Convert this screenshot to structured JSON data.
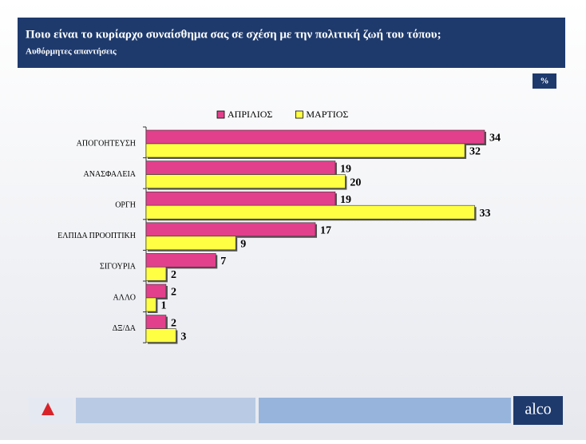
{
  "chart_data": {
    "type": "hbar",
    "title": "Ποιο είναι το κυρίαρχο συναίσθημα σας σε σχέση με την πολιτική ζωή του τόπου;",
    "subtitle": "Αυθόρμητες απαντήσεις",
    "unit": "%",
    "categories": [
      "ΑΠΟΓΟΗΤΕΥΣΗ",
      "ΑΝΑΣΦΑΛΕΙΑ",
      "ΟΡΓΗ",
      "ΕΛΠΙΔΑ ΠΡΟΟΠΤΙΚΗ",
      "ΣΙΓΟΥΡΙΑ",
      "ΑΛΛΟ",
      "ΔΞ/ΔΑ"
    ],
    "series": [
      {
        "name": "ΑΠΡΙΛΙΟΣ",
        "color": "#e2408c",
        "values": [
          34,
          19,
          19,
          17,
          7,
          2,
          2
        ]
      },
      {
        "name": "ΜΑΡΤΙΟΣ",
        "color": "#ffff44",
        "values": [
          32,
          20,
          33,
          9,
          2,
          1,
          3
        ]
      }
    ],
    "grid": false,
    "legend": "top"
  },
  "footer": {
    "logo": "alco"
  }
}
